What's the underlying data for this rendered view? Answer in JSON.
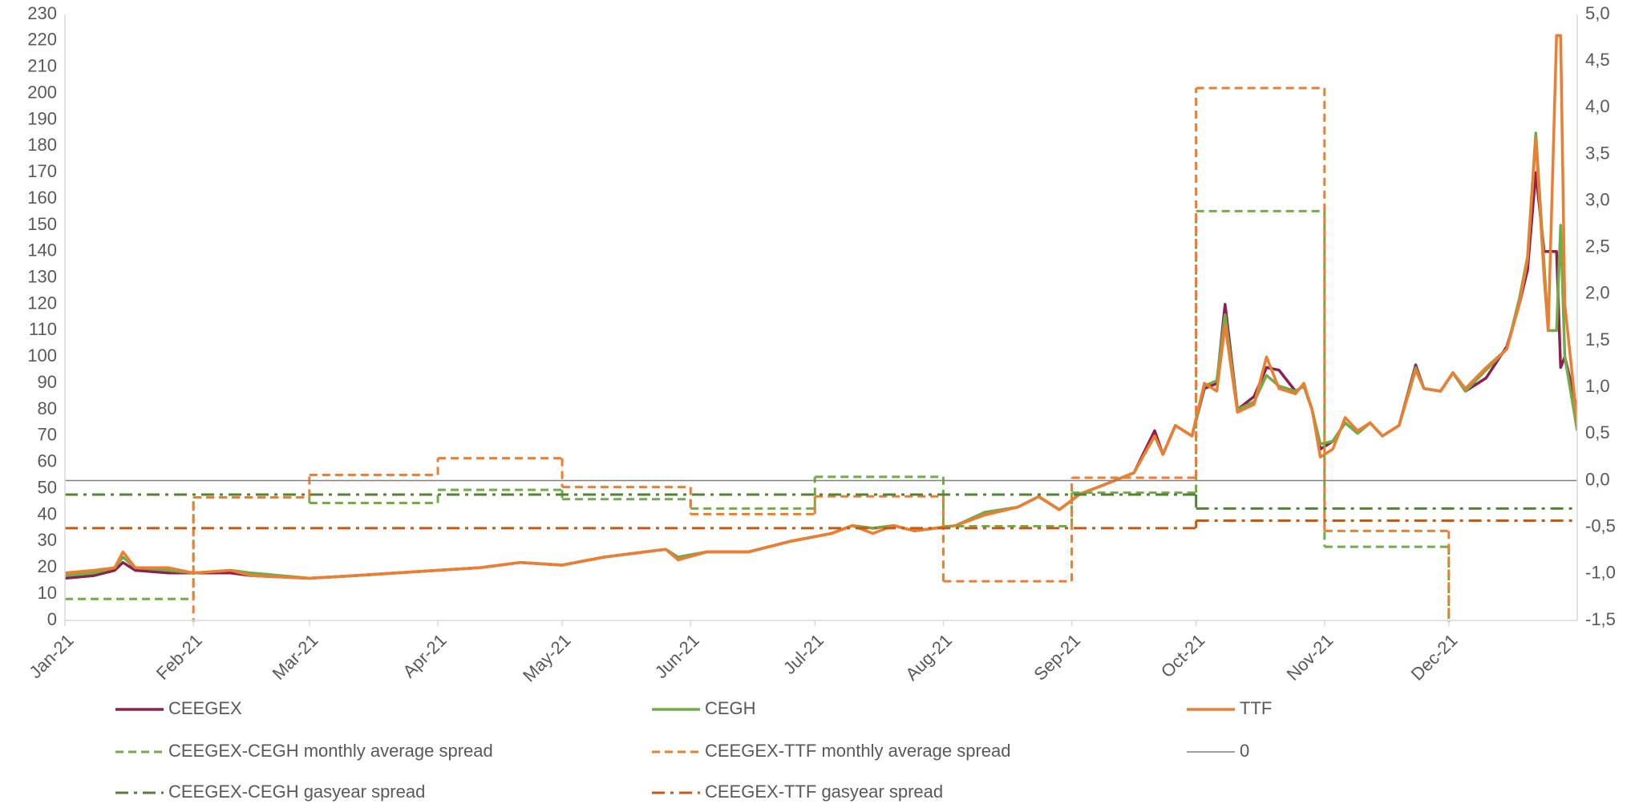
{
  "chart_data": {
    "type": "line",
    "xlim": [
      0,
      365
    ],
    "xticks": [
      {
        "value": 0,
        "label": "Jan-21"
      },
      {
        "value": 31,
        "label": "Feb-21"
      },
      {
        "value": 59,
        "label": "Mar-21"
      },
      {
        "value": 90,
        "label": "Apr-21"
      },
      {
        "value": 120,
        "label": "May-21"
      },
      {
        "value": 151,
        "label": "Jun-21"
      },
      {
        "value": 181,
        "label": "Jul-21"
      },
      {
        "value": 212,
        "label": "Aug-21"
      },
      {
        "value": 243,
        "label": "Sep-21"
      },
      {
        "value": 273,
        "label": "Oct-21"
      },
      {
        "value": 304,
        "label": "Nov-21"
      },
      {
        "value": 334,
        "label": "Dec-21"
      }
    ],
    "ylim": [
      0,
      230
    ],
    "yticks": [
      0,
      10,
      20,
      30,
      40,
      50,
      60,
      70,
      80,
      90,
      100,
      110,
      120,
      130,
      140,
      150,
      160,
      170,
      180,
      190,
      200,
      210,
      220,
      230
    ],
    "y2lim": [
      -1.5,
      5
    ],
    "y2ticks": [
      {
        "value": -1.5,
        "label": "-1,5"
      },
      {
        "value": -1,
        "label": "-1,0"
      },
      {
        "value": -0.5,
        "label": "-0,5"
      },
      {
        "value": 0,
        "label": "0,0"
      },
      {
        "value": 0.5,
        "label": "0,5"
      },
      {
        "value": 1,
        "label": "1,0"
      },
      {
        "value": 1.5,
        "label": "1,5"
      },
      {
        "value": 2,
        "label": "2,0"
      },
      {
        "value": 2.5,
        "label": "2,5"
      },
      {
        "value": 3,
        "label": "3,0"
      },
      {
        "value": 3.5,
        "label": "3,5"
      },
      {
        "value": 4,
        "label": "4,0"
      },
      {
        "value": 4.5,
        "label": "4,5"
      },
      {
        "value": 5,
        "label": "5,0"
      }
    ],
    "grid": false,
    "x": [
      0,
      7,
      12,
      14,
      17,
      25,
      31,
      40,
      45,
      59,
      70,
      80,
      90,
      100,
      110,
      120,
      130,
      140,
      145,
      148,
      155,
      165,
      175,
      185,
      190,
      195,
      200,
      205,
      215,
      222,
      230,
      235,
      240,
      245,
      250,
      258,
      263,
      265,
      268,
      272,
      275,
      278,
      280,
      283,
      287,
      290,
      293,
      297,
      299,
      301,
      303,
      306,
      309,
      312,
      315,
      318,
      322,
      326,
      328,
      332,
      335,
      338,
      343,
      348,
      351,
      353,
      355,
      357,
      358,
      360,
      361,
      362,
      365
    ],
    "series": [
      {
        "name": "CEEGEX",
        "color": "#8e1f4f",
        "style": "solid",
        "values": [
          16,
          17,
          19,
          22,
          19,
          18,
          18,
          18,
          17,
          16,
          17,
          18,
          19,
          20,
          22,
          21,
          24,
          26,
          27,
          24,
          26,
          26,
          30,
          33,
          36,
          35,
          36,
          34,
          36,
          41,
          43,
          47,
          42,
          48,
          51,
          56,
          72,
          63,
          74,
          70,
          88,
          90,
          120,
          80,
          85,
          96,
          95,
          87,
          89,
          80,
          65,
          68,
          75,
          71,
          75,
          70,
          74,
          97,
          88,
          87,
          94,
          87,
          92,
          104,
          120,
          133,
          170,
          140,
          140,
          140,
          96,
          100,
          80
        ]
      },
      {
        "name": "CEGH",
        "color": "#70ad47",
        "style": "solid",
        "values": [
          17,
          18,
          20,
          24,
          20,
          19,
          18,
          19,
          18,
          16,
          17,
          18,
          19,
          20,
          22,
          21,
          24,
          26,
          27,
          24,
          26,
          26,
          30,
          33,
          36,
          35,
          36,
          34,
          36,
          41,
          43,
          47,
          42,
          48,
          51,
          56,
          70,
          63,
          74,
          70,
          89,
          91,
          116,
          80,
          83,
          93,
          89,
          87,
          89,
          80,
          67,
          68,
          75,
          71,
          75,
          70,
          74,
          96,
          88,
          87,
          94,
          87,
          95,
          103,
          122,
          138,
          185,
          135,
          110,
          110,
          150,
          100,
          72
        ]
      },
      {
        "name": "TTF",
        "color": "#ed7d31",
        "style": "solid",
        "values": [
          18,
          19,
          20,
          26,
          20,
          20,
          18,
          19,
          17,
          16,
          17,
          18,
          19,
          20,
          22,
          21,
          24,
          26,
          27,
          23,
          26,
          26,
          30,
          33,
          36,
          33,
          36,
          34,
          36,
          40,
          43,
          47,
          42,
          48,
          51,
          56,
          70,
          63,
          74,
          70,
          90,
          87,
          112,
          79,
          82,
          100,
          88,
          86,
          90,
          80,
          62,
          65,
          77,
          72,
          75,
          70,
          74,
          95,
          88,
          87,
          94,
          88,
          96,
          103,
          120,
          137,
          183,
          130,
          110,
          222,
          222,
          120,
          75
        ]
      },
      {
        "name": "CEEGEX-CEGH monthly average spread",
        "color": "#70ad47",
        "style": "dashed",
        "axis": "y2",
        "step": true,
        "x": [
          0,
          31,
          59,
          90,
          120,
          151,
          181,
          212,
          243,
          273,
          304,
          334
        ],
        "values": [
          -1.27,
          -0.18,
          -0.24,
          -0.1,
          -0.2,
          -0.3,
          0.04,
          -0.49,
          -0.13,
          2.89,
          -0.71,
          -2.0
        ]
      },
      {
        "name": "CEEGEX-TTF monthly average spread",
        "color": "#ed7d31",
        "style": "dashed",
        "axis": "y2",
        "step": true,
        "x": [
          0,
          31,
          59,
          90,
          120,
          151,
          181,
          212,
          243,
          273,
          304,
          334
        ],
        "values": [
          -1.7,
          -0.18,
          0.06,
          0.24,
          -0.07,
          -0.36,
          -0.17,
          -1.08,
          0.03,
          4.21,
          -0.54,
          -2.0
        ]
      },
      {
        "name": "0",
        "color": "#808080",
        "style": "thin",
        "axis": "y2",
        "step": true,
        "x": [
          0
        ],
        "values": [
          0
        ]
      },
      {
        "name": "CEEGEX-CEGH gasyear spread",
        "color": "#548235",
        "style": "dashdot",
        "axis": "y2",
        "step": true,
        "x": [
          0,
          273
        ],
        "values": [
          -0.15,
          -0.3
        ]
      },
      {
        "name": "CEEGEX-TTF gasyear spread",
        "color": "#c55a11",
        "style": "dashdot",
        "axis": "y2",
        "step": true,
        "x": [
          0,
          273
        ],
        "values": [
          -0.51,
          -0.43
        ]
      }
    ]
  }
}
